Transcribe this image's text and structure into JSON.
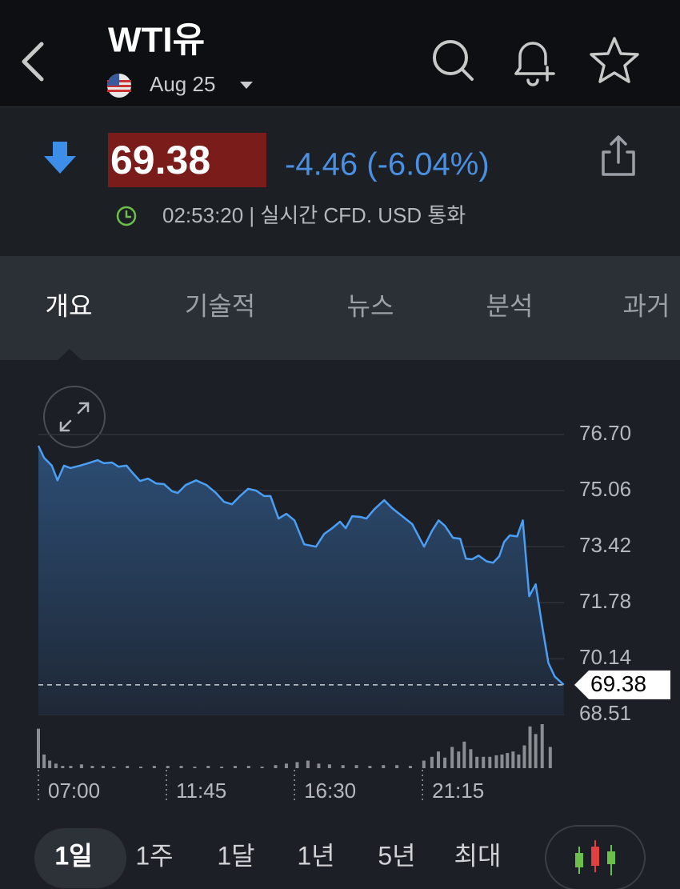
{
  "header": {
    "title": "WTI유",
    "contract": "Aug 25"
  },
  "quote": {
    "price": "69.38",
    "change": "-4.46 (-6.04%)",
    "time": "02:53:20 | 실시간 CFD. USD 통화"
  },
  "tabs": [
    "개요",
    "기술적",
    "뉴스",
    "분석",
    "과거"
  ],
  "chart_data": {
    "type": "area",
    "color": "#4a9ff5",
    "x": [
      7.0,
      7.21,
      7.5,
      7.71,
      7.95,
      8.19,
      8.54,
      8.84,
      9.2,
      9.43,
      9.73,
      9.97,
      10.27,
      10.47,
      10.77,
      11.07,
      11.36,
      11.66,
      11.96,
      12.17,
      12.46,
      12.85,
      13.24,
      13.59,
      13.89,
      14.18,
      14.48,
      14.78,
      15.08,
      15.37,
      15.61,
      15.91,
      16.2,
      16.5,
      16.86,
      17.3,
      17.6,
      17.9,
      18.19,
      18.4,
      18.64,
      18.94,
      19.17,
      19.47,
      19.83,
      20.12,
      20.42,
      20.87,
      21.31,
      21.61,
      21.85,
      22.08,
      22.38,
      22.65,
      22.86,
      23.09,
      23.33,
      23.63,
      23.87,
      24.1,
      24.28,
      24.49,
      24.76,
      24.97,
      25.21,
      25.45,
      25.68,
      25.92,
      26.16,
      26.49
    ],
    "values": [
      76.37,
      76.02,
      75.79,
      75.36,
      75.79,
      75.72,
      75.79,
      75.86,
      75.95,
      75.86,
      75.88,
      75.76,
      75.79,
      75.6,
      75.34,
      75.41,
      75.27,
      75.25,
      75.04,
      74.99,
      75.22,
      75.36,
      75.22,
      74.99,
      74.73,
      74.66,
      74.9,
      75.11,
      75.06,
      74.9,
      74.9,
      74.24,
      74.38,
      74.19,
      73.49,
      73.42,
      73.79,
      73.96,
      74.15,
      73.96,
      74.31,
      74.29,
      74.24,
      74.52,
      74.78,
      74.55,
      74.36,
      74.08,
      73.42,
      73.89,
      74.19,
      74.03,
      73.68,
      73.65,
      73.07,
      73.05,
      73.16,
      72.99,
      72.95,
      73.14,
      73.56,
      73.75,
      73.72,
      74.19,
      71.97,
      72.32,
      71.15,
      70.02,
      69.62,
      69.38
    ],
    "xlim": [
      7,
      26.5
    ],
    "xticks": [
      {
        "value": 7,
        "label": "07:00"
      },
      {
        "value": 11.75,
        "label": "11:45"
      },
      {
        "value": 16.5,
        "label": "16:30"
      },
      {
        "value": 21.25,
        "label": "21:15"
      }
    ],
    "ylim": [
      68.51,
      76.7
    ],
    "yticks": [
      {
        "value": 76.7,
        "label": "76.70"
      },
      75.06,
      73.42,
      71.78,
      70.14,
      68.51
    ],
    "grid": true,
    "last_value": 69.38,
    "volume": {
      "color": "#8a8d92",
      "x": [
        7.0,
        7.21,
        7.42,
        7.65,
        7.9,
        8.2,
        8.6,
        9.0,
        9.4,
        9.8,
        10.3,
        10.8,
        11.3,
        11.8,
        12.3,
        12.8,
        13.3,
        13.8,
        14.3,
        14.8,
        15.3,
        15.8,
        16.2,
        16.6,
        17.0,
        17.4,
        17.8,
        18.3,
        18.8,
        19.3,
        19.8,
        20.3,
        20.8,
        21.3,
        21.6,
        21.84,
        22.08,
        22.35,
        22.59,
        22.8,
        23.04,
        23.27,
        23.51,
        23.75,
        23.99,
        24.2,
        24.4,
        24.61,
        24.82,
        25.03,
        25.24,
        25.45,
        25.69,
        25.99
      ],
      "values": [
        52,
        18,
        10,
        6,
        3,
        3,
        5,
        3,
        3,
        2,
        3,
        2,
        3,
        3,
        3,
        2,
        3,
        2,
        3,
        3,
        2,
        4,
        6,
        8,
        10,
        6,
        5,
        4,
        4,
        3,
        4,
        4,
        3,
        10,
        15,
        22,
        14,
        28,
        22,
        35,
        25,
        15,
        15,
        15,
        17,
        18,
        20,
        22,
        18,
        30,
        55,
        45,
        58,
        28
      ]
    }
  },
  "ranges": [
    "1일",
    "1주",
    "1달",
    "1년",
    "5년",
    "최대"
  ]
}
